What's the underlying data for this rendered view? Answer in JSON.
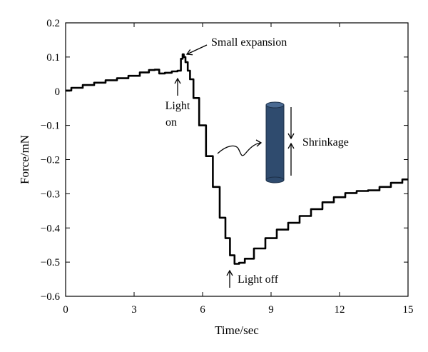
{
  "chart_data": {
    "type": "line",
    "xlabel": "Time/sec",
    "ylabel": "Force/mN",
    "xlim": [
      0,
      15
    ],
    "ylim": [
      -0.6,
      0.2
    ],
    "xticks": [
      "0",
      "3",
      "6",
      "9",
      "12",
      "15"
    ],
    "yticks": [
      "0.2",
      "0.1",
      "0",
      "−0.1",
      "−0.2",
      "−0.3",
      "−0.4",
      "−0.5",
      "−0.6"
    ],
    "grid": false,
    "legend": "none",
    "series": [
      {
        "color": "#000000",
        "x": [
          0,
          0.5,
          1.0,
          1.5,
          2.0,
          2.5,
          3.0,
          3.5,
          3.8,
          4.0,
          4.2,
          4.5,
          4.8,
          5.0,
          5.1,
          5.15,
          5.2,
          5.3,
          5.4,
          5.5,
          5.7,
          6.0,
          6.3,
          6.6,
          6.9,
          7.1,
          7.3,
          7.5,
          7.7,
          8.0,
          8.5,
          9.0,
          9.5,
          10.0,
          10.5,
          11.0,
          11.5,
          12.0,
          12.5,
          13.0,
          13.5,
          14.0,
          14.5,
          15.0
        ],
        "y": [
          0.002,
          0.01,
          0.018,
          0.025,
          0.032,
          0.038,
          0.045,
          0.055,
          0.062,
          0.063,
          0.052,
          0.054,
          0.058,
          0.06,
          0.095,
          0.108,
          0.1,
          0.085,
          0.06,
          0.035,
          -0.02,
          -0.1,
          -0.19,
          -0.28,
          -0.37,
          -0.43,
          -0.48,
          -0.505,
          -0.502,
          -0.49,
          -0.46,
          -0.43,
          -0.405,
          -0.385,
          -0.365,
          -0.345,
          -0.325,
          -0.31,
          -0.298,
          -0.292,
          -0.29,
          -0.28,
          -0.268,
          -0.258
        ]
      }
    ],
    "annotations": {
      "small_expansion": "Small expansion",
      "light_on_line1": "Light",
      "light_on_line2": "on",
      "light_off": "Light off",
      "shrinkage": "Shrinkage"
    },
    "colors": {
      "line": "#000000",
      "cylinder": "#2f4b6e"
    }
  }
}
